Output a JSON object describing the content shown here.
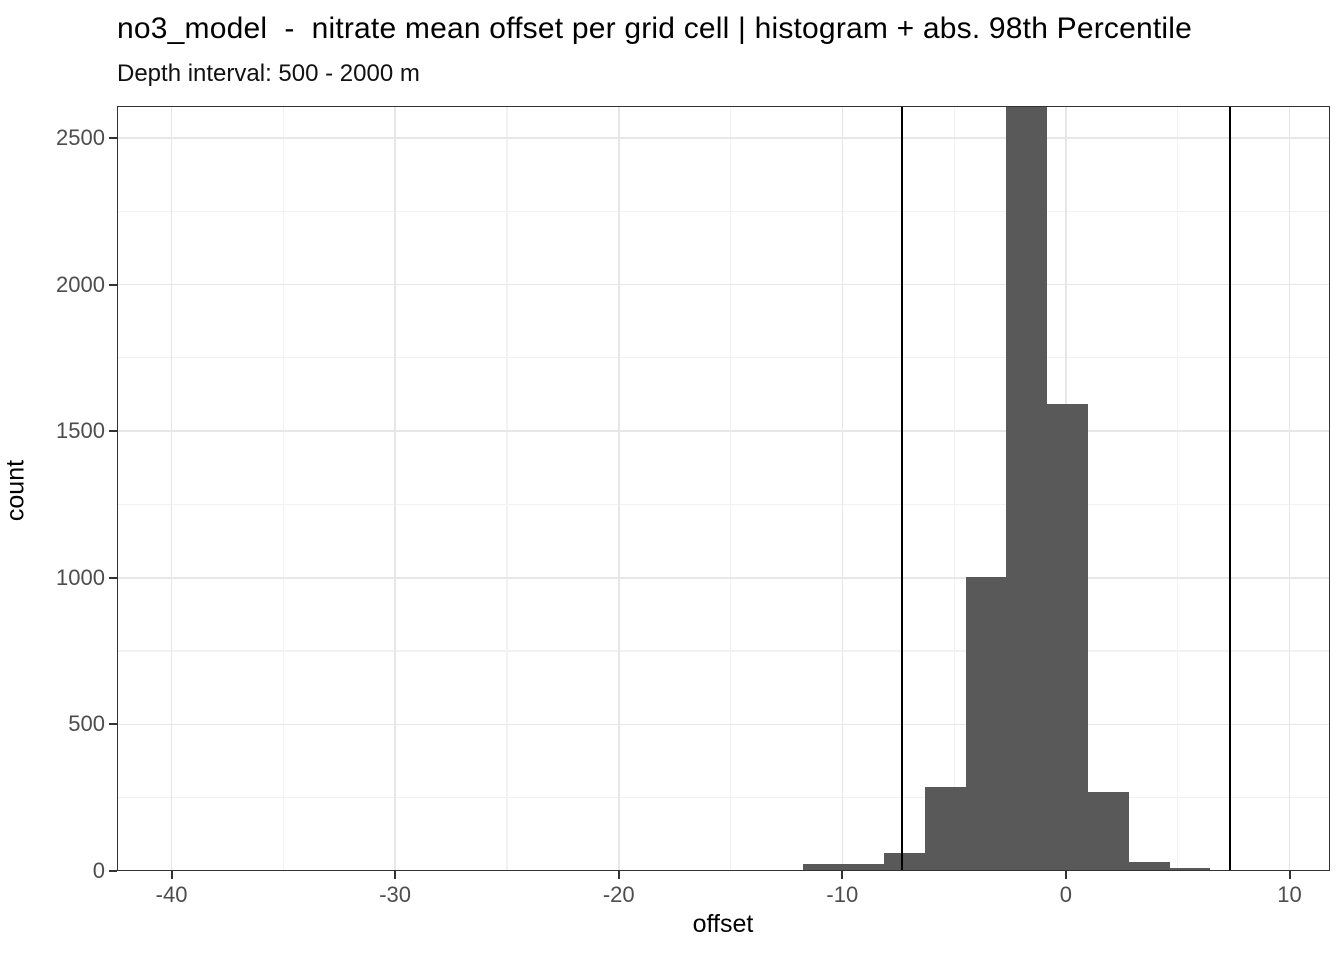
{
  "header": {
    "title": "no3_model  -  nitrate mean offset per grid cell | histogram + abs. 98th Percentile",
    "subtitle": "Depth interval: 500 - 2000 m"
  },
  "chart_data": {
    "type": "bar",
    "subtype": "histogram",
    "title": "no3_model  -  nitrate mean offset per grid cell | histogram + abs. 98th Percentile",
    "subtitle": "Depth interval: 500 - 2000 m",
    "xlabel": "offset",
    "ylabel": "count",
    "xlim": [
      -42.44,
      11.81
    ],
    "ylim": [
      0,
      2609
    ],
    "x_ticks": [
      -40,
      -30,
      -20,
      -10,
      0,
      10
    ],
    "x_minor_ticks": [
      -35,
      -25,
      -15,
      -5,
      5
    ],
    "y_ticks": [
      0,
      500,
      1000,
      1500,
      2000,
      2500
    ],
    "y_minor_ticks": [
      250,
      750,
      1250,
      1750,
      2250
    ],
    "grid": {
      "major_color": "#e7e7e7",
      "minor_color": "#f2f2f2",
      "visible": true
    },
    "legend": "none",
    "bar_color": "#595959",
    "bin_width": 1.82,
    "bins": [
      {
        "x0": -19.05,
        "x1": -17.23,
        "count": 4
      },
      {
        "x0": -17.23,
        "x1": -15.41,
        "count": 4
      },
      {
        "x0": -15.41,
        "x1": -13.59,
        "count": 4
      },
      {
        "x0": -13.59,
        "x1": -11.77,
        "count": 5
      },
      {
        "x0": -11.77,
        "x1": -9.95,
        "count": 24
      },
      {
        "x0": -9.95,
        "x1": -8.13,
        "count": 24
      },
      {
        "x0": -8.13,
        "x1": -6.31,
        "count": 61
      },
      {
        "x0": -6.31,
        "x1": -4.49,
        "count": 287
      },
      {
        "x0": -4.49,
        "x1": -2.67,
        "count": 1003
      },
      {
        "x0": -2.67,
        "x1": -0.85,
        "count": 2610
      },
      {
        "x0": -0.85,
        "x1": 0.97,
        "count": 1593
      },
      {
        "x0": 0.97,
        "x1": 2.79,
        "count": 270
      },
      {
        "x0": 2.79,
        "x1": 4.61,
        "count": 31
      },
      {
        "x0": 4.61,
        "x1": 6.43,
        "count": 10
      }
    ],
    "tallest_bin_clipped_at_top": true,
    "vlines": {
      "meaning": "abs. 98th Percentile",
      "values": [
        -7.33,
        7.33
      ],
      "color": "#000000"
    }
  }
}
